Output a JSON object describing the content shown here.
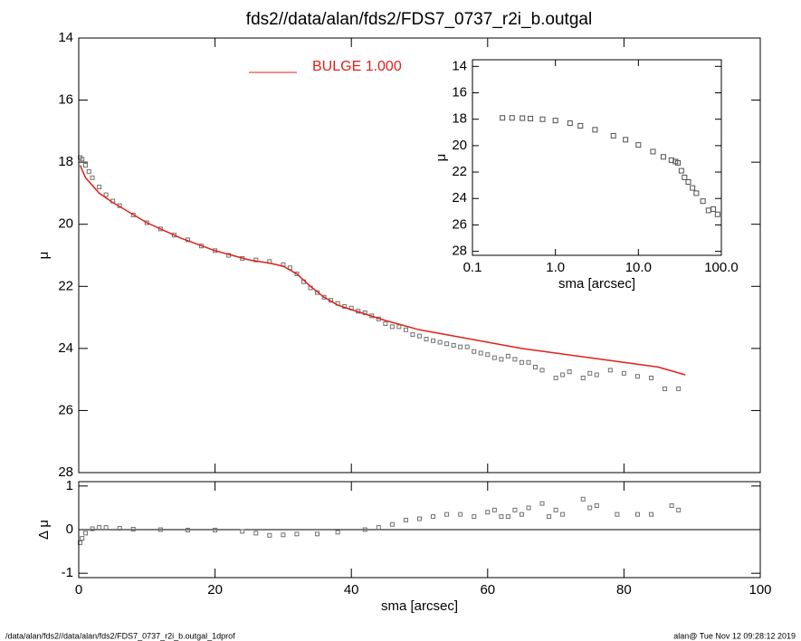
{
  "chart_data": [
    {
      "type": "scatter",
      "title": "fds2//data/alan/fds2/FDS7_0737_r2i_b.outgal",
      "ylabel": "μ",
      "xlim": [
        0,
        100
      ],
      "ylim": [
        28,
        14
      ],
      "yticks": [
        14,
        16,
        18,
        20,
        22,
        24,
        26,
        28
      ],
      "series": [
        {
          "color": "#707070",
          "marker": "square",
          "x": [
            0.2,
            0.5,
            1,
            1.5,
            2,
            3,
            4,
            5,
            6,
            8,
            10,
            12,
            14,
            16,
            18,
            20,
            22,
            24,
            26,
            28,
            30,
            31,
            32,
            33,
            34,
            35,
            36,
            37,
            38,
            39,
            40,
            41,
            42,
            43,
            44,
            45,
            46,
            47,
            48,
            49,
            50,
            51,
            52,
            53,
            54,
            55,
            56,
            57,
            58,
            59,
            60,
            61,
            62,
            63,
            64,
            65,
            66,
            67,
            68,
            70,
            71,
            72,
            74,
            75,
            76,
            78,
            80,
            82,
            84,
            86,
            88
          ],
          "values": [
            17.85,
            17.9,
            18.1,
            18.3,
            18.5,
            18.8,
            19.05,
            19.25,
            19.4,
            19.7,
            19.95,
            20.15,
            20.35,
            20.5,
            20.7,
            20.85,
            21.0,
            21.1,
            21.15,
            21.2,
            21.3,
            21.4,
            21.6,
            21.85,
            22.05,
            22.2,
            22.35,
            22.45,
            22.55,
            22.65,
            22.7,
            22.8,
            22.85,
            22.95,
            23.05,
            23.2,
            23.3,
            23.3,
            23.4,
            23.55,
            23.6,
            23.7,
            23.75,
            23.8,
            23.85,
            23.9,
            23.95,
            23.95,
            24.1,
            24.15,
            24.2,
            24.3,
            24.35,
            24.25,
            24.35,
            24.45,
            24.45,
            24.6,
            24.7,
            24.95,
            24.85,
            24.75,
            24.95,
            24.8,
            24.85,
            24.7,
            24.8,
            24.9,
            24.95,
            25.3,
            25.3
          ]
        },
        {
          "name": "BULGE  1.000",
          "color": "#e0201a",
          "marker": "line",
          "x": [
            0.2,
            1,
            3,
            5,
            10,
            15,
            20,
            25,
            28,
            30,
            32,
            34,
            36,
            38,
            40,
            45,
            50,
            55,
            60,
            65,
            70,
            75,
            80,
            85,
            89
          ],
          "values": [
            18.1,
            18.5,
            19.0,
            19.3,
            19.95,
            20.45,
            20.85,
            21.15,
            21.25,
            21.35,
            21.6,
            22.0,
            22.35,
            22.6,
            22.75,
            23.1,
            23.4,
            23.6,
            23.8,
            24.0,
            24.15,
            24.3,
            24.45,
            24.6,
            24.85
          ]
        }
      ]
    },
    {
      "type": "scatter",
      "xlabel": "sma [arcsec]",
      "ylabel": "Δ μ",
      "xlim": [
        0,
        100
      ],
      "xticks": [
        0,
        20,
        40,
        60,
        80,
        100
      ],
      "ylim": [
        -1.1,
        1.1
      ],
      "yticks": [
        -1,
        0,
        1
      ],
      "reference_line": 0,
      "series": [
        {
          "color": "#707070",
          "marker": "square",
          "x": [
            0.2,
            0.5,
            1,
            2,
            3,
            4,
            6,
            8,
            12,
            16,
            20,
            24,
            26,
            28,
            30,
            32,
            35,
            38,
            42,
            44,
            46,
            48,
            50,
            52,
            54,
            56,
            58,
            60,
            61,
            62,
            63,
            64,
            65,
            66,
            68,
            69,
            70,
            71,
            74,
            75,
            76,
            79,
            82,
            84,
            87,
            88
          ],
          "values": [
            -0.3,
            -0.2,
            -0.08,
            0.02,
            0.05,
            0.05,
            0.03,
            0.01,
            0,
            -0.01,
            -0.01,
            -0.04,
            -0.08,
            -0.13,
            -0.12,
            -0.1,
            -0.1,
            -0.06,
            0,
            0.05,
            0.12,
            0.22,
            0.25,
            0.3,
            0.35,
            0.35,
            0.3,
            0.4,
            0.45,
            0.3,
            0.3,
            0.45,
            0.35,
            0.5,
            0.6,
            0.3,
            0.45,
            0.35,
            0.7,
            0.5,
            0.55,
            0.35,
            0.35,
            0.35,
            0.55,
            0.45
          ]
        }
      ]
    },
    {
      "type": "scatter",
      "xlabel": "sma [arcsec]",
      "ylabel": "μ",
      "xlog": true,
      "xlim": [
        0.1,
        100
      ],
      "xticks": [
        0.1,
        {
          "value": 1,
          "label": "1.0"
        },
        {
          "value": 10,
          "label": "10.0"
        },
        {
          "value": 100,
          "label": "100.0"
        }
      ],
      "ylim": [
        28.3,
        13.5
      ],
      "yticks": [
        14,
        16,
        18,
        20,
        22,
        24,
        26,
        28
      ],
      "series": [
        {
          "color": "#505050",
          "marker": "square",
          "x": [
            0.23,
            0.3,
            0.4,
            0.5,
            0.7,
            1,
            1.5,
            2,
            3,
            5,
            7,
            10,
            15,
            20,
            25,
            28,
            30,
            33,
            36,
            40,
            45,
            50,
            60,
            70,
            80,
            90
          ],
          "values": [
            17.9,
            17.9,
            17.92,
            17.95,
            18.0,
            18.1,
            18.3,
            18.5,
            18.8,
            19.25,
            19.55,
            19.95,
            20.45,
            20.85,
            21.1,
            21.2,
            21.3,
            21.9,
            22.4,
            22.75,
            23.2,
            23.6,
            24.2,
            24.9,
            24.8,
            25.2
          ]
        }
      ]
    }
  ],
  "footer": {
    "left": "/data/alan/fds2//data/alan/fds2/FDS7_0737_r2i_b.outgal_1dprof",
    "right": "alan@  Tue Nov 12 09:28:12 2019"
  }
}
